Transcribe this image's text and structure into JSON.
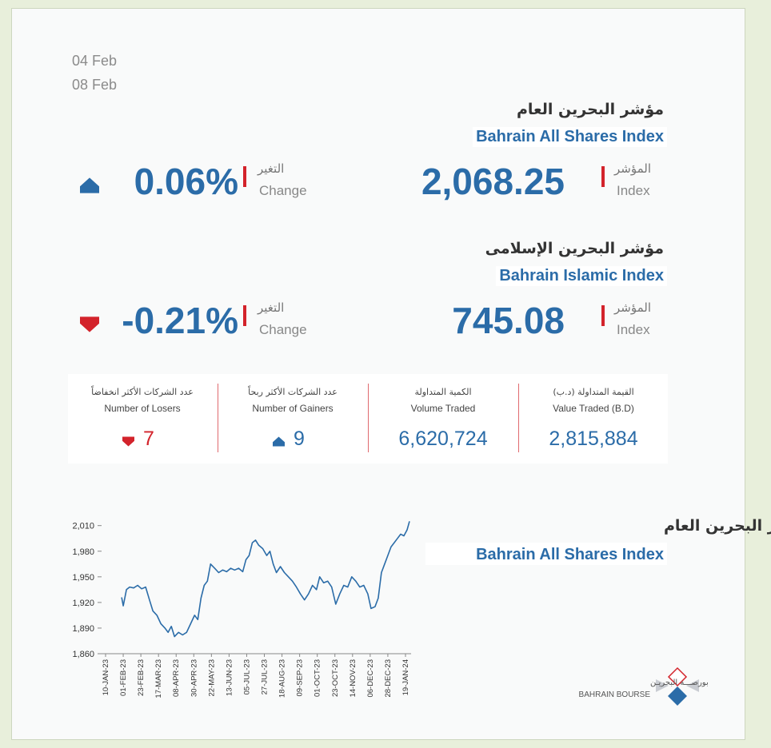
{
  "dates": [
    "04 Feb",
    "08 Feb"
  ],
  "indices": [
    {
      "title_ar": "مؤشر البحرين العام",
      "title_en": "Bahrain All Shares Index",
      "change": "0.06%",
      "direction": "up",
      "change_label_ar": "التغير",
      "change_label_en": "Change",
      "index": "2,068.25",
      "index_label_ar": "المؤشر",
      "index_label_en": "Index"
    },
    {
      "title_ar": "مؤشر البحرين الإسلامى",
      "title_en": "Bahrain Islamic Index",
      "change": "-0.21%",
      "direction": "down",
      "change_label_ar": "التغير",
      "change_label_en": "Change",
      "index": "745.08",
      "index_label_ar": "المؤشر",
      "index_label_en": "Index"
    }
  ],
  "stats": [
    {
      "label_ar": "عدد الشركات الأكثر انخفاضاً",
      "label_en": "Number of Losers",
      "value": "7",
      "direction": "down"
    },
    {
      "label_ar": "عدد الشركات الأكثر ربحاً",
      "label_en": "Number of Gainers",
      "value": "9",
      "direction": "up"
    },
    {
      "label_ar": "الكمية المتداولة",
      "label_en": "Volume Traded",
      "value": "6,620,724"
    },
    {
      "label_ar": "القيمة المتداولة (د.ب)",
      "label_en": "Value Traded (B.D)",
      "value": "2,815,884"
    }
  ],
  "chart_data": {
    "type": "line",
    "title": "مؤشر البحرين العام",
    "subtitle": "Bahrain All Shares Index",
    "color": "#2b6ca8",
    "x": [
      "30-JAN-23",
      "01-FEB-23",
      "05-FEB-23",
      "09-FEB-23",
      "14-FEB-23",
      "19-FEB-23",
      "24-FEB-23",
      "01-MAR-23",
      "06-MAR-23",
      "10-MAR-23",
      "15-MAR-23",
      "20-MAR-23",
      "25-MAR-23",
      "29-MAR-23",
      "02-APR-23",
      "06-APR-23",
      "11-APR-23",
      "16-APR-23",
      "21-APR-23",
      "26-APR-23",
      "01-MAY-23",
      "05-MAY-23",
      "09-MAY-23",
      "13-MAY-23",
      "17-MAY-23",
      "21-MAY-23",
      "26-MAY-23",
      "31-MAY-23",
      "05-JUN-23",
      "10-JUN-23",
      "15-JUN-23",
      "20-JUN-23",
      "25-JUN-23",
      "30-JUN-23",
      "04-JUL-23",
      "08-JUL-23",
      "12-JUL-23",
      "16-JUL-23",
      "20-JUL-23",
      "25-JUL-23",
      "30-JUL-23",
      "03-AUG-23",
      "07-AUG-23",
      "11-AUG-23",
      "16-AUG-23",
      "21-AUG-23",
      "26-AUG-23",
      "31-AUG-23",
      "05-SEP-23",
      "10-SEP-23",
      "15-SEP-23",
      "20-SEP-23",
      "25-SEP-23",
      "30-SEP-23",
      "04-OCT-23",
      "09-OCT-23",
      "14-OCT-23",
      "19-OCT-23",
      "24-OCT-23",
      "29-OCT-23",
      "03-NOV-23",
      "08-NOV-23",
      "13-NOV-23",
      "18-NOV-23",
      "23-NOV-23",
      "28-NOV-23",
      "03-DEC-23",
      "07-DEC-23",
      "12-DEC-23",
      "16-DEC-23",
      "20-DEC-23",
      "24-DEC-23",
      "28-DEC-23",
      "01-JAN-24",
      "05-JAN-24",
      "09-JAN-24",
      "13-JAN-24",
      "17-JAN-24",
      "21-JAN-24",
      "24-JAN-24"
    ],
    "values": [
      1926,
      1916,
      1935,
      1938,
      1937,
      1940,
      1936,
      1938,
      1922,
      1910,
      1905,
      1895,
      1890,
      1885,
      1892,
      1880,
      1885,
      1882,
      1885,
      1895,
      1905,
      1900,
      1925,
      1940,
      1945,
      1965,
      1960,
      1955,
      1958,
      1956,
      1960,
      1958,
      1960,
      1956,
      1970,
      1975,
      1990,
      1993,
      1987,
      1983,
      1975,
      1980,
      1965,
      1955,
      1962,
      1955,
      1950,
      1945,
      1938,
      1930,
      1923,
      1930,
      1940,
      1935,
      1950,
      1943,
      1945,
      1938,
      1918,
      1930,
      1940,
      1938,
      1950,
      1945,
      1938,
      1940,
      1930,
      1913,
      1915,
      1925,
      1955,
      1965,
      1975,
      1985,
      1990,
      1995,
      2000,
      1998,
      2005,
      2015
    ],
    "xlim": [
      "07-JAN-23",
      "26-JAN-24"
    ],
    "xticks": [
      "10-JAN-23",
      "01-FEB-23",
      "23-FEB-23",
      "17-MAR-23",
      "08-APR-23",
      "30-APR-23",
      "22-MAY-23",
      "13-JUN-23",
      "05-JUL-23",
      "27-JUL-23",
      "18-AUG-23",
      "09-SEP-23",
      "01-OCT-23",
      "23-OCT-23",
      "14-NOV-23",
      "06-DEC-23",
      "28-DEC-23",
      "19-JAN-24"
    ],
    "ylim": [
      1860,
      2020
    ],
    "yticks": [
      {
        "value": 1860,
        "label": "1,860"
      },
      {
        "value": 1890,
        "label": "1,890"
      },
      {
        "value": 1920,
        "label": "1,920"
      },
      {
        "value": 1950,
        "label": "1,950"
      },
      {
        "value": 1980,
        "label": "1,980"
      },
      {
        "value": 2010,
        "label": "2,010"
      }
    ]
  },
  "logo": {
    "ar": "بورصـــة البحريـن",
    "en": "BAHRAIN BOURSE"
  }
}
